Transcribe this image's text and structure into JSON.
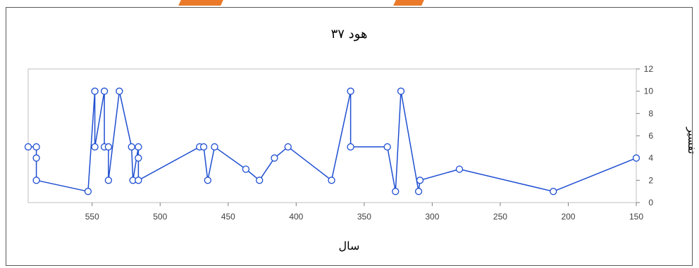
{
  "chart_data": {
    "type": "scatter",
    "title": "هود ۳۷",
    "xlabel": "سال",
    "ylabel": "تفسیر",
    "xlim": [
      597,
      150
    ],
    "ylim": [
      0,
      12
    ],
    "x_ticks": [
      550,
      500,
      450,
      400,
      350,
      300,
      250,
      200,
      150
    ],
    "y_ticks": [
      0,
      2,
      4,
      6,
      8,
      10,
      12
    ],
    "x_reversed": true,
    "y_axis_position": "right",
    "line_color": "#1f4fd1",
    "marker_fill": "#ffffff",
    "points": [
      [
        597,
        5
      ],
      [
        591,
        5
      ],
      [
        591,
        4
      ],
      [
        591,
        2
      ],
      [
        553,
        1
      ],
      [
        548,
        10
      ],
      [
        548,
        5
      ],
      [
        541,
        10
      ],
      [
        541,
        5
      ],
      [
        538,
        5
      ],
      [
        538,
        2
      ],
      [
        530,
        10
      ],
      [
        521,
        5
      ],
      [
        520,
        2
      ],
      [
        516,
        5
      ],
      [
        516,
        4
      ],
      [
        516,
        2
      ],
      [
        471,
        5
      ],
      [
        468,
        5
      ],
      [
        465,
        2
      ],
      [
        460,
        5
      ],
      [
        437,
        3
      ],
      [
        427,
        2
      ],
      [
        416,
        4
      ],
      [
        406,
        5
      ],
      [
        374,
        2
      ],
      [
        360,
        10
      ],
      [
        360,
        5
      ],
      [
        333,
        5
      ],
      [
        327,
        1
      ],
      [
        323,
        10
      ],
      [
        310,
        1
      ],
      [
        309,
        2
      ],
      [
        280,
        3
      ],
      [
        211,
        1
      ],
      [
        150,
        4
      ]
    ]
  }
}
